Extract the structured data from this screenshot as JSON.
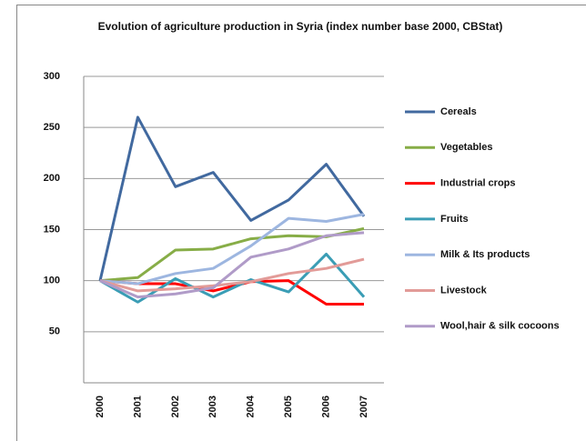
{
  "chart_data": {
    "type": "line",
    "title": "Evolution of agriculture production in Syria (index number base 2000, CBStat)",
    "categories": [
      "2000",
      "2001",
      "2002",
      "2003",
      "2004",
      "2005",
      "2006",
      "2007"
    ],
    "ylim": [
      0,
      300
    ],
    "yticks": [
      50,
      100,
      150,
      200,
      250,
      300
    ],
    "grid": true,
    "legend": "right",
    "series": [
      {
        "name": "Cereals",
        "color": "#41699f",
        "values": [
          100,
          260,
          192,
          206,
          159,
          179,
          214,
          163
        ]
      },
      {
        "name": "Vegetables",
        "color": "#87ad47",
        "values": [
          100,
          103,
          130,
          131,
          141,
          144,
          143,
          151
        ]
      },
      {
        "name": "Industrial crops",
        "color": "#ff0000",
        "values": [
          100,
          97,
          97,
          90,
          99,
          100,
          77,
          77
        ]
      },
      {
        "name": "Fruits",
        "color": "#3a9db5",
        "values": [
          100,
          79,
          102,
          84,
          101,
          89,
          126,
          84
        ]
      },
      {
        "name": "Milk & Its products",
        "color": "#9db6e0",
        "values": [
          100,
          97,
          107,
          112,
          134,
          161,
          158,
          165
        ]
      },
      {
        "name": "Livestock",
        "color": "#e29b98",
        "values": [
          100,
          90,
          92,
          95,
          99,
          107,
          112,
          121
        ]
      },
      {
        "name": "Wool,hair & silk cocoons",
        "color": "#b09bc8",
        "values": [
          100,
          84,
          87,
          93,
          123,
          131,
          144,
          147
        ]
      }
    ]
  }
}
